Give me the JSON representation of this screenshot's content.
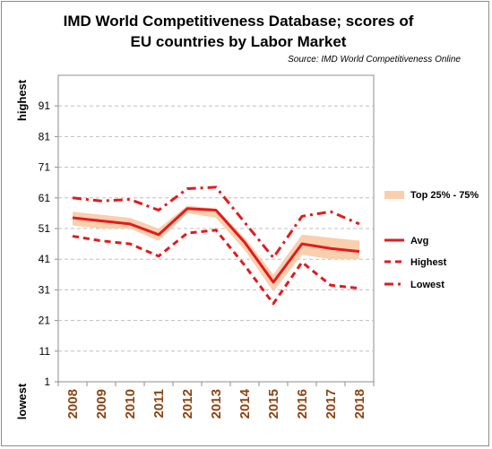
{
  "colors": {
    "band": "#f9cfae",
    "series": "#e31a1c",
    "tick_text": "#8b4513",
    "grid": "#bfbfbf"
  },
  "chart_data": {
    "type": "line",
    "title_line1": "IMD World Competitiveness Database; scores of",
    "title_line2": "EU countries by Labor Market",
    "source": "Source: IMD World Competitiveness Online",
    "y_top_label": "highest",
    "y_bottom_label": "lowest",
    "ylim": [
      1,
      101
    ],
    "yticks": [
      1,
      11,
      21,
      31,
      41,
      51,
      61,
      71,
      81,
      91
    ],
    "grid": true,
    "legend_position": "right",
    "x": [
      "2008",
      "2009",
      "2010",
      "2011",
      "2012",
      "2013",
      "2014",
      "2015",
      "2016",
      "2017",
      "2018"
    ],
    "band": {
      "name": "Top 25% - 75%",
      "upper": [
        56.5,
        55.5,
        54.5,
        51,
        58.5,
        57.5,
        48,
        36,
        49,
        48,
        47
      ],
      "lower": [
        52,
        51,
        51,
        47,
        56,
        54.5,
        44,
        30.5,
        42.5,
        41,
        41
      ]
    },
    "series": [
      {
        "name": "Avg",
        "style": "solid",
        "values": [
          54.5,
          53.5,
          52.5,
          49,
          57.5,
          57,
          46.5,
          33.5,
          46,
          44.5,
          43.5
        ]
      },
      {
        "name": "Highest",
        "style": "dashed",
        "values": [
          48.5,
          47,
          46,
          42,
          49.5,
          50.5,
          39,
          26.5,
          40,
          32.5,
          31.5
        ]
      },
      {
        "name": "Lowest",
        "style": "dashdot",
        "values": [
          61,
          60,
          60.5,
          57,
          64,
          64.5,
          53,
          41.5,
          55,
          56.5,
          52.5
        ]
      }
    ]
  }
}
